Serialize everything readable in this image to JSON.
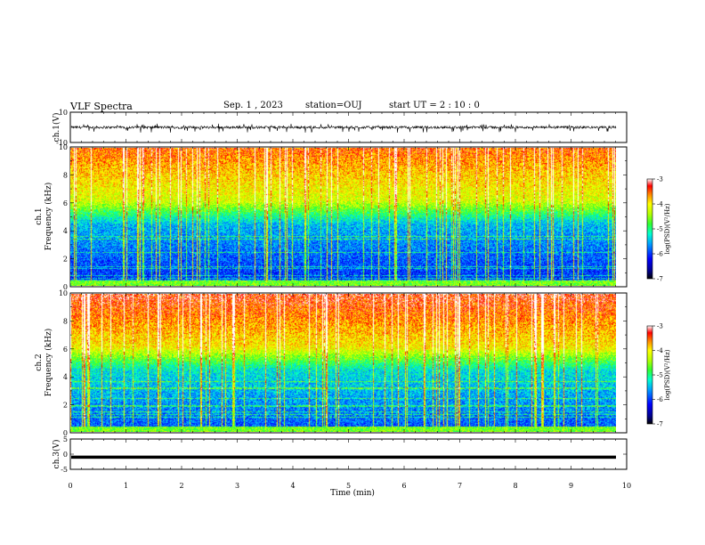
{
  "header": {
    "title": "VLF Spectra",
    "date": "Sep. 1 , 2023",
    "station": "station=OUJ",
    "start": "start  UT =  2 : 10 : 0"
  },
  "chart_data": [
    {
      "type": "line",
      "name": "ch1-waveform",
      "ylabel": "ch.1(V)",
      "ylim": [
        -10,
        10
      ],
      "yticks": [
        "10",
        "-10"
      ],
      "xlim": [
        0,
        10
      ],
      "baseline": 0,
      "amplitude_range": [
        -3.5,
        2.5
      ]
    },
    {
      "type": "heatmap",
      "name": "ch1-spectrogram",
      "ylabel_line1": "ch.1",
      "ylabel_line2": "Frequency (kHz)",
      "ylim": [
        0,
        10
      ],
      "yticks": [
        "0",
        "2",
        "4",
        "6",
        "8",
        "10"
      ],
      "xlim": [
        0,
        9.8
      ],
      "colorbar": {
        "label": "log(PSD)(V²/Hz)",
        "range": [
          -7,
          -3
        ],
        "ticks": [
          "-3",
          "-4",
          "-5",
          "-6",
          "-7"
        ]
      }
    },
    {
      "type": "heatmap",
      "name": "ch2-spectrogram",
      "ylabel_line1": "ch.2",
      "ylabel_line2": "Frequency (kHz)",
      "ylim": [
        0,
        10
      ],
      "yticks": [
        "0",
        "2",
        "4",
        "6",
        "8",
        "10"
      ],
      "xlim": [
        0,
        9.8
      ],
      "colorbar": {
        "label": "log(PSD)(V²/Hz)",
        "range": [
          -7,
          -3
        ],
        "ticks": [
          "-3",
          "-4",
          "-5",
          "-6",
          "-7"
        ]
      }
    },
    {
      "type": "line",
      "name": "ch3-waveform",
      "ylabel": "ch.3(V)",
      "ylim": [
        -5,
        5
      ],
      "yticks": [
        "5",
        "0",
        "-5"
      ],
      "xlim": [
        0,
        10
      ],
      "value": -1
    }
  ],
  "xaxis": {
    "label": "Time  (min)",
    "ticks": [
      "0",
      "1",
      "2",
      "3",
      "4",
      "5",
      "6",
      "7",
      "8",
      "9",
      "10"
    ]
  }
}
